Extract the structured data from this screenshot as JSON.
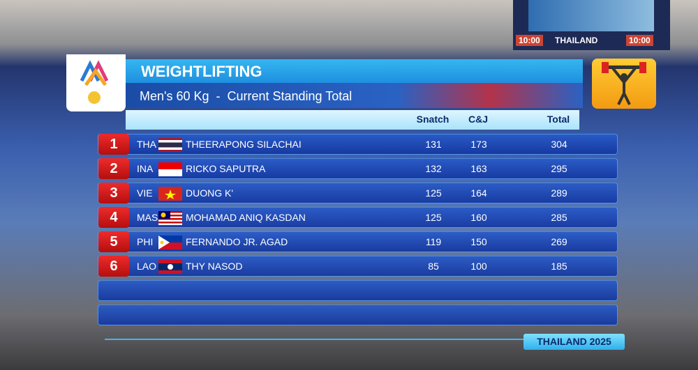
{
  "scoreboard": {
    "clock_left": "10:00",
    "clock_right": "10:00",
    "brand": "THAILAND"
  },
  "graphic": {
    "title": "WEIGHTLIFTING",
    "subtitle": "Men's 60 Kg  -  Current Standing Total",
    "columns": [
      "Snatch",
      "C&J",
      "Total"
    ],
    "rows": [
      {
        "rank": 1,
        "country": "THA",
        "name": "THEERAPONG SILACHAI",
        "snatch": 131,
        "cj": 173,
        "total": 304
      },
      {
        "rank": 2,
        "country": "INA",
        "name": "RICKO SAPUTRA",
        "snatch": 132,
        "cj": 163,
        "total": 295
      },
      {
        "rank": 3,
        "country": "VIE",
        "name": "DUONG K'",
        "snatch": 125,
        "cj": 164,
        "total": 289
      },
      {
        "rank": 4,
        "country": "MAS",
        "name": "MOHAMAD ANIQ KASDAN",
        "snatch": 125,
        "cj": 160,
        "total": 285
      },
      {
        "rank": 5,
        "country": "PHI",
        "name": "FERNANDO JR. AGAD",
        "snatch": 119,
        "cj": 150,
        "total": 269
      },
      {
        "rank": 6,
        "country": "LAO",
        "name": "THY NASOD",
        "snatch": 85,
        "cj": 100,
        "total": 185
      }
    ],
    "footer": "THAILAND 2025"
  }
}
